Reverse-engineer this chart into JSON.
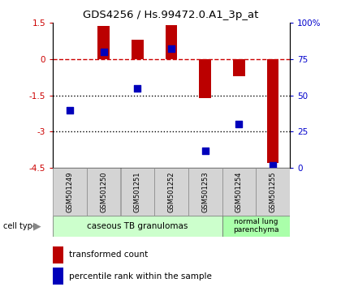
{
  "title": "GDS4256 / Hs.99472.0.A1_3p_at",
  "samples": [
    "GSM501249",
    "GSM501250",
    "GSM501251",
    "GSM501252",
    "GSM501253",
    "GSM501254",
    "GSM501255"
  ],
  "transformed_count": [
    0.0,
    1.38,
    0.8,
    1.42,
    -1.62,
    -0.72,
    -4.3
  ],
  "percentile_rank": [
    40,
    80,
    55,
    82,
    12,
    30,
    2
  ],
  "left_ylim": [
    -4.5,
    1.5
  ],
  "right_ylim": [
    0,
    100
  ],
  "left_yticks": [
    1.5,
    0,
    -1.5,
    -3,
    -4.5
  ],
  "left_ytick_labels": [
    "1.5",
    "0",
    "-1.5",
    "-3",
    "-4.5"
  ],
  "right_yticks": [
    100,
    75,
    50,
    25,
    0
  ],
  "right_ytick_labels": [
    "100%",
    "75",
    "50",
    "25",
    "0"
  ],
  "bar_color": "#bb0000",
  "dot_color": "#0000bb",
  "dashed_line_color": "#cc0000",
  "dotted_line_color": "#000000",
  "cell_type_groups": [
    {
      "label": "caseous TB granulomas",
      "n_samples": 5,
      "color": "#ccffcc"
    },
    {
      "label": "normal lung\nparenchyma",
      "n_samples": 2,
      "color": "#aaffaa"
    }
  ],
  "legend_items": [
    {
      "label": "transformed count",
      "color": "#bb0000"
    },
    {
      "label": "percentile rank within the sample",
      "color": "#0000bb"
    }
  ],
  "bar_width": 0.35,
  "dot_size": 30,
  "figsize": [
    4.2,
    3.54
  ],
  "dpi": 100
}
